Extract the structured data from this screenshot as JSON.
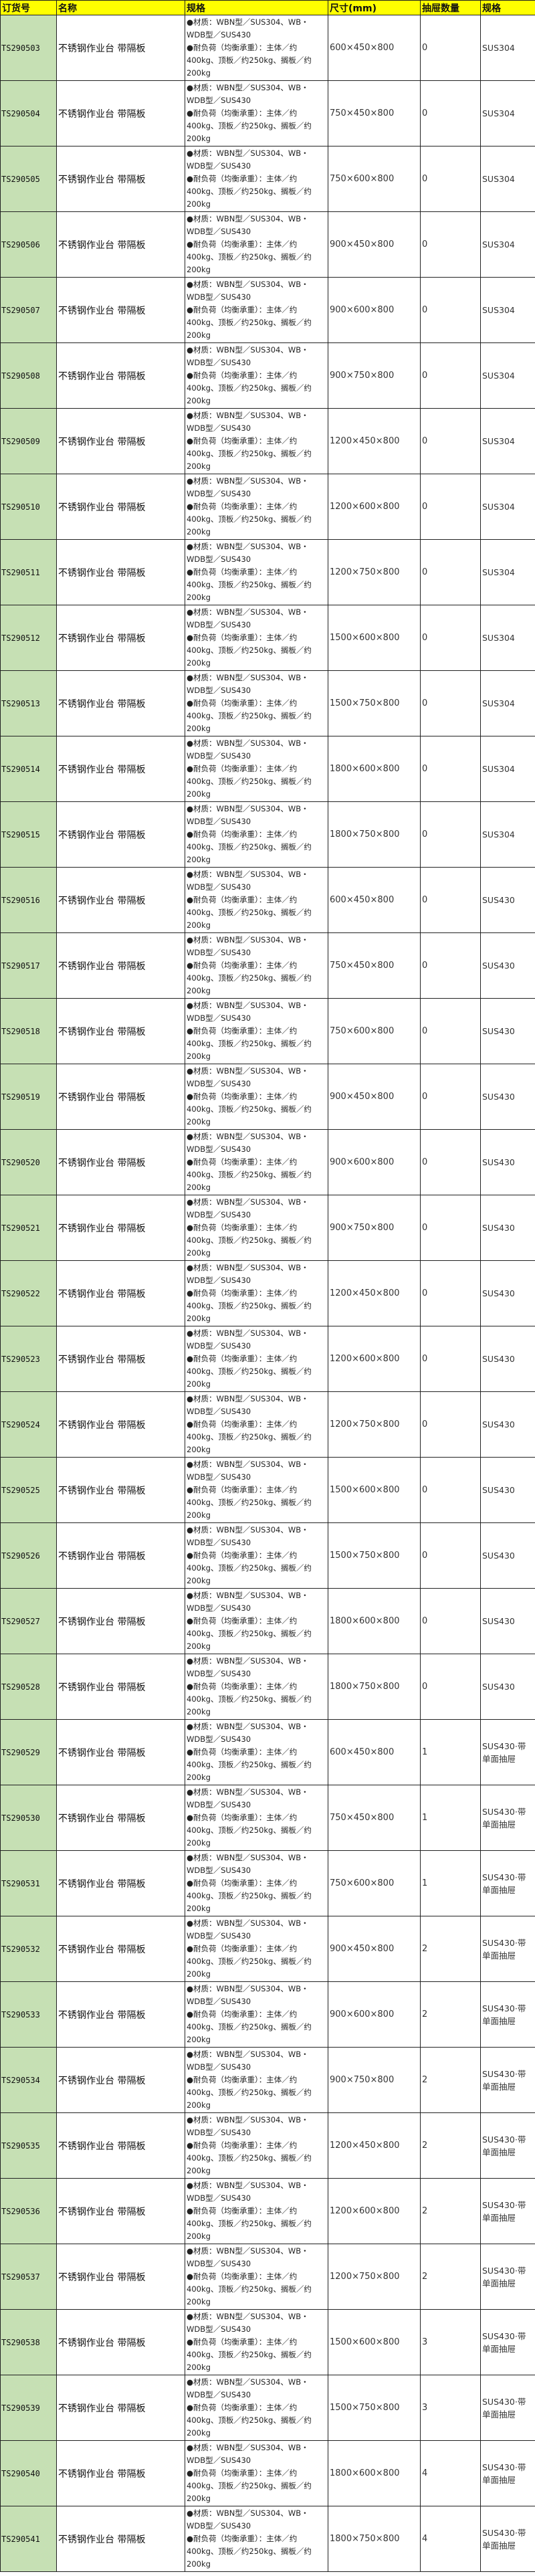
{
  "colors": {
    "header_bg": "#ffff00",
    "code_bg": "#c6e0b4"
  },
  "headers": [
    "订货号",
    "名称",
    "规格",
    "尺寸(mm)",
    "抽屉数量",
    "规格"
  ],
  "rows": [
    {
      "code": "TS290503",
      "name": "不锈钢作业台 带隔板",
      "size": "600×450×800",
      "qty": "0",
      "mat": "SUS304"
    },
    {
      "code": "TS290504",
      "name": "不锈钢作业台 带隔板",
      "size": "750×450×800",
      "qty": "0",
      "mat": "SUS304"
    },
    {
      "code": "TS290505",
      "name": "不锈钢作业台 带隔板",
      "size": "750×600×800",
      "qty": "0",
      "mat": "SUS304"
    },
    {
      "code": "TS290506",
      "name": "不锈钢作业台 带隔板",
      "size": "900×450×800",
      "qty": "0",
      "mat": "SUS304"
    },
    {
      "code": "TS290507",
      "name": "不锈钢作业台 带隔板",
      "size": "900×600×800",
      "qty": "0",
      "mat": "SUS304"
    },
    {
      "code": "TS290508",
      "name": "不锈钢作业台 带隔板",
      "size": "900×750×800",
      "qty": "0",
      "mat": "SUS304"
    },
    {
      "code": "TS290509",
      "name": "不锈钢作业台 带隔板",
      "size": "1200×450×800",
      "qty": "0",
      "mat": "SUS304"
    },
    {
      "code": "TS290510",
      "name": "不锈钢作业台 带隔板",
      "size": "1200×600×800",
      "qty": "0",
      "mat": "SUS304"
    },
    {
      "code": "TS290511",
      "name": "不锈钢作业台 带隔板",
      "size": "1200×750×800",
      "qty": "0",
      "mat": "SUS304"
    },
    {
      "code": "TS290512",
      "name": "不锈钢作业台 带隔板",
      "size": "1500×600×800",
      "qty": "0",
      "mat": "SUS304"
    },
    {
      "code": "TS290513",
      "name": "不锈钢作业台 带隔板",
      "size": "1500×750×800",
      "qty": "0",
      "mat": "SUS304"
    },
    {
      "code": "TS290514",
      "name": "不锈钢作业台 带隔板",
      "size": "1800×600×800",
      "qty": "0",
      "mat": "SUS304"
    },
    {
      "code": "TS290515",
      "name": "不锈钢作业台 带隔板",
      "size": "1800×750×800",
      "qty": "0",
      "mat": "SUS304"
    },
    {
      "code": "TS290516",
      "name": "不锈钢作业台 带隔板",
      "size": "600×450×800",
      "qty": "0",
      "mat": "SUS430"
    },
    {
      "code": "TS290517",
      "name": "不锈钢作业台 带隔板",
      "size": "750×450×800",
      "qty": "0",
      "mat": "SUS430"
    },
    {
      "code": "TS290518",
      "name": "不锈钢作业台 带隔板",
      "size": "750×600×800",
      "qty": "0",
      "mat": "SUS430"
    },
    {
      "code": "TS290519",
      "name": "不锈钢作业台 带隔板",
      "size": "900×450×800",
      "qty": "0",
      "mat": "SUS430"
    },
    {
      "code": "TS290520",
      "name": "不锈钢作业台 带隔板",
      "size": "900×600×800",
      "qty": "0",
      "mat": "SUS430"
    },
    {
      "code": "TS290521",
      "name": "不锈钢作业台 带隔板",
      "size": "900×750×800",
      "qty": "0",
      "mat": "SUS430"
    },
    {
      "code": "TS290522",
      "name": "不锈钢作业台 带隔板",
      "size": "1200×450×800",
      "qty": "0",
      "mat": "SUS430"
    },
    {
      "code": "TS290523",
      "name": "不锈钢作业台 带隔板",
      "size": "1200×600×800",
      "qty": "0",
      "mat": "SUS430"
    },
    {
      "code": "TS290524",
      "name": "不锈钢作业台 带隔板",
      "size": "1200×750×800",
      "qty": "0",
      "mat": "SUS430"
    },
    {
      "code": "TS290525",
      "name": "不锈钢作业台 带隔板",
      "size": "1500×600×800",
      "qty": "0",
      "mat": "SUS430"
    },
    {
      "code": "TS290526",
      "name": "不锈钢作业台 带隔板",
      "size": "1500×750×800",
      "qty": "0",
      "mat": "SUS430"
    },
    {
      "code": "TS290527",
      "name": "不锈钢作业台 带隔板",
      "size": "1800×600×800",
      "qty": "0",
      "mat": "SUS430"
    },
    {
      "code": "TS290528",
      "name": "不锈钢作业台 带隔板",
      "size": "1800×750×800",
      "qty": "0",
      "mat": "SUS430"
    },
    {
      "code": "TS290529",
      "name": "不锈钢作业台 带隔板",
      "size": "600×450×800",
      "qty": "1",
      "mat": "SUS430·带单面抽屉"
    },
    {
      "code": "TS290530",
      "name": "不锈钢作业台 带隔板",
      "size": "750×450×800",
      "qty": "1",
      "mat": "SUS430·带单面抽屉"
    },
    {
      "code": "TS290531",
      "name": "不锈钢作业台 带隔板",
      "size": "750×600×800",
      "qty": "1",
      "mat": "SUS430·带单面抽屉"
    },
    {
      "code": "TS290532",
      "name": "不锈钢作业台 带隔板",
      "size": "900×450×800",
      "qty": "2",
      "mat": "SUS430·带单面抽屉"
    },
    {
      "code": "TS290533",
      "name": "不锈钢作业台 带隔板",
      "size": "900×600×800",
      "qty": "2",
      "mat": "SUS430·带单面抽屉"
    },
    {
      "code": "TS290534",
      "name": "不锈钢作业台 带隔板",
      "size": "900×750×800",
      "qty": "2",
      "mat": "SUS430·带单面抽屉"
    },
    {
      "code": "TS290535",
      "name": "不锈钢作业台 带隔板",
      "size": "1200×450×800",
      "qty": "2",
      "mat": "SUS430·带单面抽屉"
    },
    {
      "code": "TS290536",
      "name": "不锈钢作业台 带隔板",
      "size": "1200×600×800",
      "qty": "2",
      "mat": "SUS430·带单面抽屉"
    },
    {
      "code": "TS290537",
      "name": "不锈钢作业台 带隔板",
      "size": "1200×750×800",
      "qty": "2",
      "mat": "SUS430·带单面抽屉"
    },
    {
      "code": "TS290538",
      "name": "不锈钢作业台 带隔板",
      "size": "1500×600×800",
      "qty": "3",
      "mat": "SUS430·带单面抽屉"
    },
    {
      "code": "TS290539",
      "name": "不锈钢作业台 带隔板",
      "size": "1500×750×800",
      "qty": "3",
      "mat": "SUS430·带单面抽屉"
    },
    {
      "code": "TS290540",
      "name": "不锈钢作业台 带隔板",
      "size": "1800×600×800",
      "qty": "4",
      "mat": "SUS430·带单面抽屉"
    },
    {
      "code": "TS290541",
      "name": "不锈钢作业台 带隔板",
      "size": "1800×750×800",
      "qty": "4",
      "mat": "SUS430·带单面抽屉"
    }
  ],
  "spec": {
    "line1": "●材质：WBN型／SUS304、WB・WDB型／SUS430",
    "line2": "●耐负荷（均衡承重）：主体／约400kg、顶板／约250kg、搁板／约200kg"
  }
}
